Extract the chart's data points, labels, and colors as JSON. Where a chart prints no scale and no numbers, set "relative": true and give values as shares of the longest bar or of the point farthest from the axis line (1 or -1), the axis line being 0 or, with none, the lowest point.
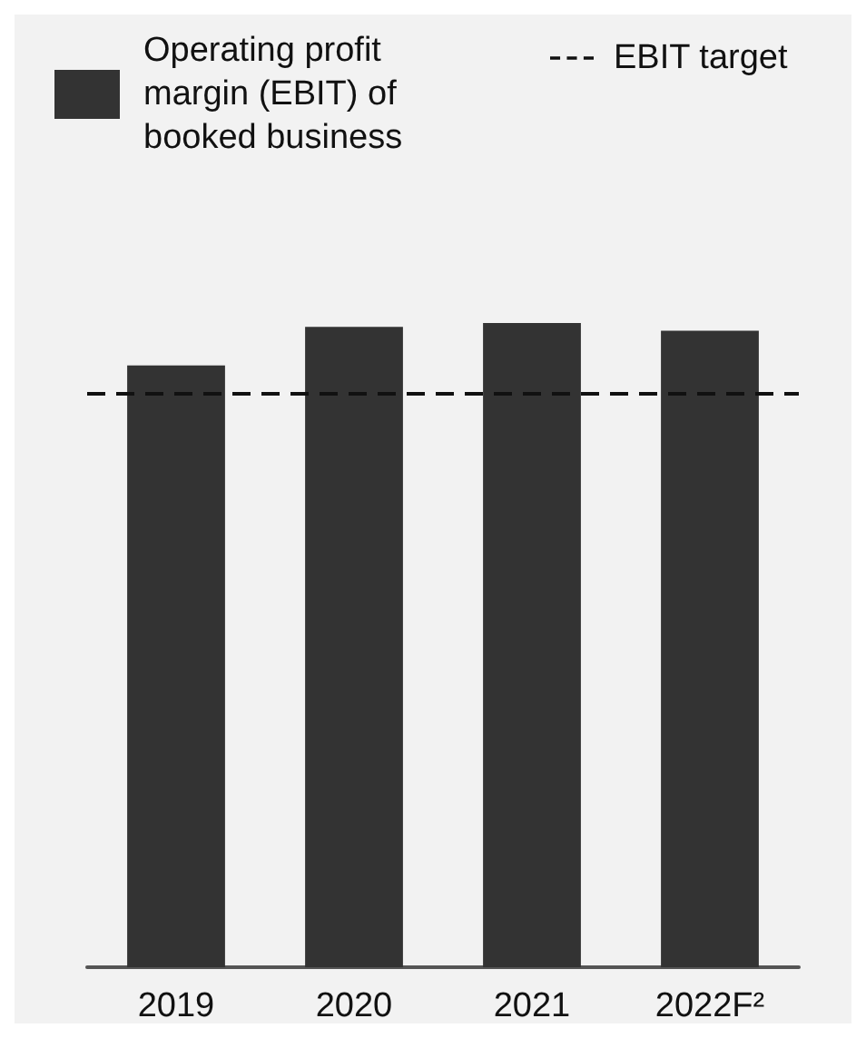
{
  "chart_data": {
    "type": "bar",
    "relative": true,
    "categories": [
      "2019",
      "2020",
      "2021",
      "2022F²"
    ],
    "series": [
      {
        "name": "Operating profit margin (EBIT) of booked business",
        "color": "#333333",
        "values": [
          0.934,
          0.994,
          1,
          0.988
        ]
      }
    ],
    "ref_lines": [
      {
        "axis": "y",
        "value": 0.893,
        "label": "EBIT target",
        "color": "#111111",
        "line_style": "dashed"
      }
    ],
    "legend": "top left"
  }
}
